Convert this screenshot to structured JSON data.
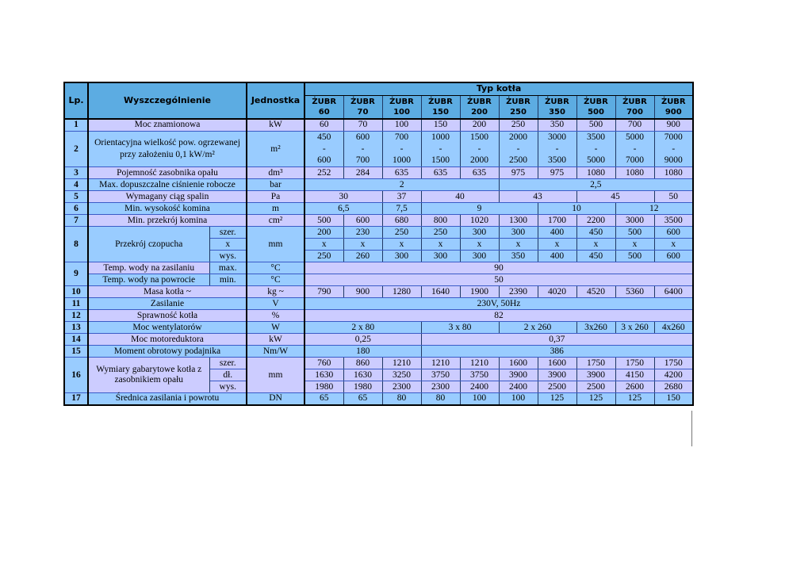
{
  "page": {
    "background": "#FFFFFF"
  },
  "colors": {
    "header_blue": "#5CACE2",
    "row_blue": "#99CCFF",
    "row_lavender": "#CCCCFF",
    "grid_blue": "#3A5BC7",
    "grid_dark": "#1F3864",
    "border_black": "#000000"
  },
  "table": {
    "header": {
      "lp": "Lp.",
      "specification": "Wyszczególnienie",
      "unit": "Jednostka",
      "group": "Typ kotła",
      "models": [
        {
          "name": "ŻUBR",
          "size": "60"
        },
        {
          "name": "ŻUBR",
          "size": "70"
        },
        {
          "name": "ŻUBR",
          "size": "100"
        },
        {
          "name": "ŻUBR",
          "size": "150"
        },
        {
          "name": "ŻUBR",
          "size": "200"
        },
        {
          "name": "ŻUBR",
          "size": "250"
        },
        {
          "name": "ŻUBR",
          "size": "350"
        },
        {
          "name": "ŻUBR",
          "size": "500"
        },
        {
          "name": "ŻUBR",
          "size": "700"
        },
        {
          "name": "ŻUBR",
          "size": "900"
        }
      ]
    },
    "rows": [
      {
        "lp": "1",
        "shade": "lav",
        "label": "Moc znamionowa",
        "unit": "kW",
        "data": [
          "60",
          "70",
          "100",
          "150",
          "200",
          "250",
          "350",
          "500",
          "700",
          "900"
        ]
      },
      {
        "lp": "2",
        "shade": "blue",
        "tall": true,
        "label": "Orientacyjna wielkość pow. ogrzewanej przy założeniu 0,1 kW/m²",
        "unit": "m²",
        "data": [
          {
            "lines": [
              "450",
              "-",
              "600"
            ]
          },
          {
            "lines": [
              "600",
              "-",
              "700"
            ]
          },
          {
            "lines": [
              "700",
              "-",
              "1000"
            ]
          },
          {
            "lines": [
              "1000",
              "-",
              "1500"
            ]
          },
          {
            "lines": [
              "1500",
              "-",
              "2000"
            ]
          },
          {
            "lines": [
              "2000",
              "-",
              "2500"
            ]
          },
          {
            "lines": [
              "3000",
              "-",
              "3500"
            ]
          },
          {
            "lines": [
              "3500",
              "-",
              "5000"
            ]
          },
          {
            "lines": [
              "5000",
              "-",
              "7000"
            ]
          },
          {
            "lines": [
              "7000",
              "-",
              "9000"
            ]
          }
        ]
      },
      {
        "lp": "3",
        "shade": "lav",
        "label": "Pojemność zasobnika opału",
        "unit": "dm³",
        "data": [
          "252",
          "284",
          "635",
          "635",
          "635",
          "975",
          "975",
          "1080",
          "1080",
          "1080"
        ]
      },
      {
        "lp": "4",
        "shade": "blue",
        "label": "Max. dopuszczalne ciśnienie robocze",
        "unit": "bar",
        "data": [
          {
            "t": "2",
            "cs": 5
          },
          {
            "t": "2,5",
            "cs": 5
          }
        ]
      },
      {
        "lp": "5",
        "shade": "lav",
        "label": "Wymagany ciąg spalin",
        "unit": "Pa",
        "data": [
          {
            "t": "30",
            "cs": 2
          },
          {
            "t": "37"
          },
          {
            "t": "40",
            "cs": 2
          },
          {
            "t": "43",
            "cs": 2
          },
          {
            "t": "45",
            "cs": 2
          },
          {
            "t": "50"
          }
        ]
      },
      {
        "lp": "6",
        "shade": "blue",
        "label": "Min. wysokość komina",
        "unit": "m",
        "data": [
          {
            "t": "6,5",
            "cs": 2
          },
          {
            "t": "7,5"
          },
          {
            "t": "9",
            "cs": 3
          },
          {
            "t": "10",
            "cs": 2
          },
          {
            "t": "12",
            "cs": 2
          }
        ]
      },
      {
        "lp": "7",
        "shade": "lav",
        "label": "Min. przekrój komina",
        "unit": "cm²",
        "data": [
          "500",
          "600",
          "680",
          "800",
          "1020",
          "1300",
          "1700",
          "2200",
          "3000",
          "3500"
        ]
      },
      {
        "lp": "8",
        "shade": "blue",
        "label": "Przekrój czopucha",
        "unit": "mm",
        "subrows": [
          {
            "sublabel": "szer.",
            "data": [
              "200",
              "230",
              "250",
              "250",
              "300",
              "300",
              "400",
              "450",
              "500",
              "600"
            ]
          },
          {
            "sublabel": "x",
            "data": [
              "x",
              "x",
              "x",
              "x",
              "x",
              "x",
              "x",
              "x",
              "x",
              "x"
            ]
          },
          {
            "sublabel": "wys.",
            "data": [
              "250",
              "260",
              "300",
              "300",
              "300",
              "350",
              "400",
              "450",
              "500",
              "600"
            ]
          }
        ]
      },
      {
        "lp": "9",
        "subrows": [
          {
            "shade": "lav",
            "label": "Temp. wody na zasilaniu",
            "sublabel": "max.",
            "sublabel_shade": "blue",
            "unit": "°C",
            "unit_shade": "blue",
            "data": [
              {
                "t": "90",
                "cs": 10,
                "shade": "lav"
              }
            ]
          },
          {
            "shade": "blue",
            "label": "Temp. wody na powrocie",
            "sublabel": "min.",
            "unit": "°C",
            "data": [
              {
                "t": "50",
                "cs": 10,
                "shade": "lav"
              }
            ]
          }
        ]
      },
      {
        "lp": "10",
        "shade": "lav",
        "label": "Masa kotła ~",
        "unit": "kg ~",
        "data": [
          "790",
          "900",
          "1280",
          "1640",
          "1900",
          "2390",
          "4020",
          "4520",
          "5360",
          "6400"
        ]
      },
      {
        "lp": "11",
        "shade": "blue",
        "label": "Zasilanie",
        "unit": "V",
        "data": [
          {
            "t": "230V, 50Hz",
            "cs": 10
          }
        ]
      },
      {
        "lp": "12",
        "shade": "lav",
        "label": "Sprawność kotła",
        "unit": "%",
        "data": [
          {
            "t": "82",
            "cs": 10
          }
        ]
      },
      {
        "lp": "13",
        "shade": "blue",
        "label": "Moc wentylatorów",
        "unit": "W",
        "data": [
          {
            "t": "2 x 80",
            "cs": 3
          },
          {
            "t": "3 x 80",
            "cs": 2
          },
          {
            "t": "2 x 260",
            "cs": 2
          },
          {
            "t": "3x260"
          },
          {
            "t": "3 x 260"
          },
          {
            "t": "4x260"
          }
        ]
      },
      {
        "lp": "14",
        "shade": "lav",
        "label": "Moc motoreduktora",
        "unit": "kW",
        "data": [
          {
            "t": "0,25",
            "cs": 3
          },
          {
            "t": "0,37",
            "cs": 7
          }
        ]
      },
      {
        "lp": "15",
        "shade": "blue",
        "label": "Moment obrotowy podajnika",
        "unit": "Nm/W",
        "data": [
          {
            "t": "180",
            "cs": 3
          },
          {
            "t": "386",
            "cs": 7
          }
        ]
      },
      {
        "lp": "16",
        "shade": "lav",
        "label": "Wymiary gabarytowe kotła z zasobnikiem opału",
        "unit": "mm",
        "subrows": [
          {
            "sublabel": "szer.",
            "data": [
              "760",
              "860",
              "1210",
              "1210",
              "1210",
              "1600",
              "1600",
              "1750",
              "1750",
              "1750"
            ]
          },
          {
            "sublabel": "dł.",
            "data": [
              "1630",
              "1630",
              "3250",
              "3750",
              "3750",
              "3900",
              "3900",
              "3900",
              "4150",
              "4200"
            ]
          },
          {
            "sublabel": "wys.",
            "data": [
              "1980",
              "1980",
              "2300",
              "2300",
              "2400",
              "2400",
              "2500",
              "2500",
              "2600",
              "2680"
            ]
          }
        ]
      },
      {
        "lp": "17",
        "shade": "blue",
        "label": "Średnica zasilania i powrotu",
        "unit": "DN",
        "data": [
          "65",
          "65",
          "80",
          "80",
          "100",
          "100",
          "125",
          "125",
          "125",
          "150"
        ]
      }
    ]
  }
}
